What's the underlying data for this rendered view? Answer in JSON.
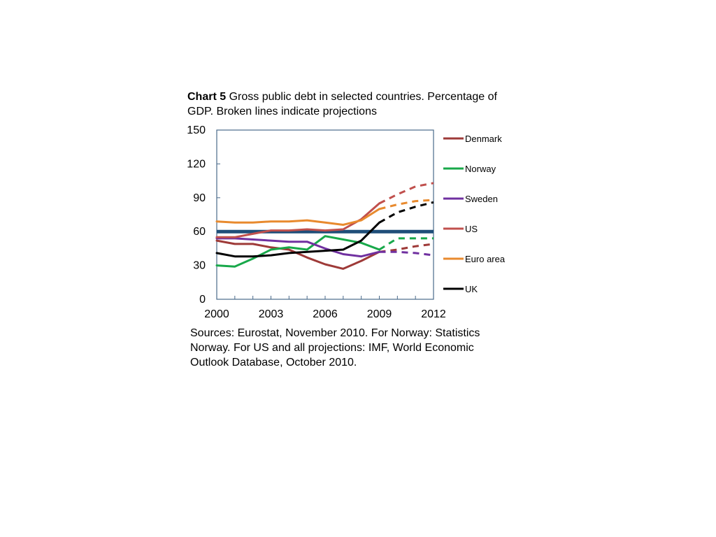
{
  "title": {
    "prefix": "Chart 5",
    "text": "Gross public debt in selected countries. Percentage of GDP. Broken lines indicate projections"
  },
  "source": "Sources: Eurostat, November 2010. For Norway: Statistics Norway. For US and all projections: IMF, World Economic Outlook Database, October 2010.",
  "chart_data": {
    "type": "line",
    "xlim": [
      2000,
      2012
    ],
    "ylim": [
      0,
      150
    ],
    "x_ticks": [
      "2000",
      "2003",
      "2006",
      "2009",
      "2012"
    ],
    "y_ticks": [
      "0",
      "30",
      "60",
      "90",
      "120",
      "150"
    ],
    "grid": false,
    "legend_position": "right",
    "reference_line": {
      "y": 60,
      "color": "#1f4e79"
    },
    "series": [
      {
        "name": "Denmark",
        "color": "#9e3a38",
        "actual": [
          [
            2000,
            52
          ],
          [
            2001,
            49
          ],
          [
            2002,
            49
          ],
          [
            2003,
            46
          ],
          [
            2004,
            44
          ],
          [
            2005,
            37
          ],
          [
            2006,
            31
          ],
          [
            2007,
            27
          ],
          [
            2008,
            34
          ],
          [
            2009,
            42
          ]
        ],
        "projected": [
          [
            2009,
            42
          ],
          [
            2010,
            44
          ],
          [
            2011,
            47
          ],
          [
            2012,
            49
          ]
        ]
      },
      {
        "name": "Norway",
        "color": "#18a84a",
        "actual": [
          [
            2000,
            30
          ],
          [
            2001,
            29
          ],
          [
            2002,
            36
          ],
          [
            2003,
            44
          ],
          [
            2004,
            46
          ],
          [
            2005,
            44
          ],
          [
            2006,
            56
          ],
          [
            2007,
            53
          ],
          [
            2008,
            50
          ],
          [
            2009,
            44
          ]
        ],
        "projected": [
          [
            2009,
            44
          ],
          [
            2010,
            54
          ],
          [
            2011,
            54
          ],
          [
            2012,
            54
          ]
        ]
      },
      {
        "name": "Sweden",
        "color": "#7030a0",
        "actual": [
          [
            2000,
            54
          ],
          [
            2001,
            54
          ],
          [
            2002,
            53
          ],
          [
            2003,
            52
          ],
          [
            2004,
            51
          ],
          [
            2005,
            51
          ],
          [
            2006,
            45
          ],
          [
            2007,
            40
          ],
          [
            2008,
            38
          ],
          [
            2009,
            42
          ]
        ],
        "projected": [
          [
            2009,
            42
          ],
          [
            2010,
            42
          ],
          [
            2011,
            41
          ],
          [
            2012,
            39
          ]
        ]
      },
      {
        "name": "US",
        "color": "#c0504d",
        "actual": [
          [
            2000,
            55
          ],
          [
            2001,
            55
          ],
          [
            2002,
            58
          ],
          [
            2003,
            61
          ],
          [
            2004,
            61
          ],
          [
            2005,
            62
          ],
          [
            2006,
            61
          ],
          [
            2007,
            62
          ],
          [
            2008,
            71
          ],
          [
            2009,
            85
          ]
        ],
        "projected": [
          [
            2009,
            85
          ],
          [
            2010,
            93
          ],
          [
            2011,
            100
          ],
          [
            2012,
            103
          ]
        ]
      },
      {
        "name": "Euro area",
        "color": "#e88a2e",
        "actual": [
          [
            2000,
            69
          ],
          [
            2001,
            68
          ],
          [
            2002,
            68
          ],
          [
            2003,
            69
          ],
          [
            2004,
            69
          ],
          [
            2005,
            70
          ],
          [
            2006,
            68
          ],
          [
            2007,
            66
          ],
          [
            2008,
            70
          ],
          [
            2009,
            80
          ]
        ],
        "projected": [
          [
            2009,
            80
          ],
          [
            2010,
            84
          ],
          [
            2011,
            87
          ],
          [
            2012,
            88
          ]
        ]
      },
      {
        "name": "UK",
        "color": "#000000",
        "actual": [
          [
            2000,
            41
          ],
          [
            2001,
            38
          ],
          [
            2002,
            38
          ],
          [
            2003,
            39
          ],
          [
            2004,
            41
          ],
          [
            2005,
            42
          ],
          [
            2006,
            43
          ],
          [
            2007,
            44
          ],
          [
            2008,
            52
          ],
          [
            2009,
            68
          ]
        ],
        "projected": [
          [
            2009,
            68
          ],
          [
            2010,
            77
          ],
          [
            2011,
            82
          ],
          [
            2012,
            86
          ]
        ]
      }
    ]
  }
}
